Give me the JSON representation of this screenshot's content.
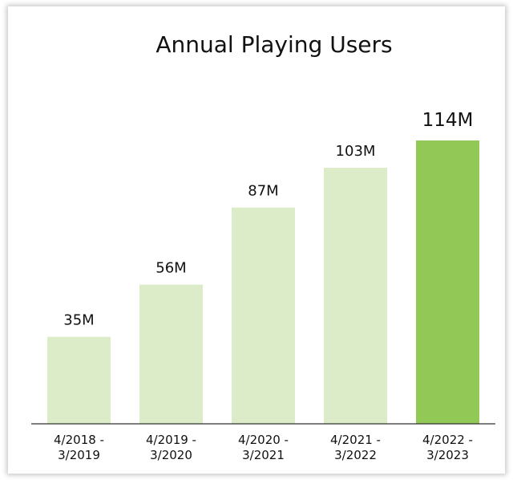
{
  "chart_data": {
    "type": "bar",
    "title": "Annual Playing Users",
    "categories": [
      [
        "4/2018 -",
        "3/2019"
      ],
      [
        "4/2019 -",
        "3/2020"
      ],
      [
        "4/2020 -",
        "3/2021"
      ],
      [
        "4/2021 -",
        "3/2022"
      ],
      [
        "4/2022 -",
        "3/2023"
      ]
    ],
    "values": [
      35,
      56,
      87,
      103,
      114
    ],
    "value_labels": [
      "35M",
      "56M",
      "87M",
      "103M",
      "114M"
    ],
    "unit": "M",
    "ylim": [
      0,
      114
    ],
    "highlight_index": 4,
    "colors": {
      "bar": "#dcebc8",
      "highlight": "#92c956",
      "axis": "#333333"
    },
    "grid": false,
    "legend": "none"
  }
}
